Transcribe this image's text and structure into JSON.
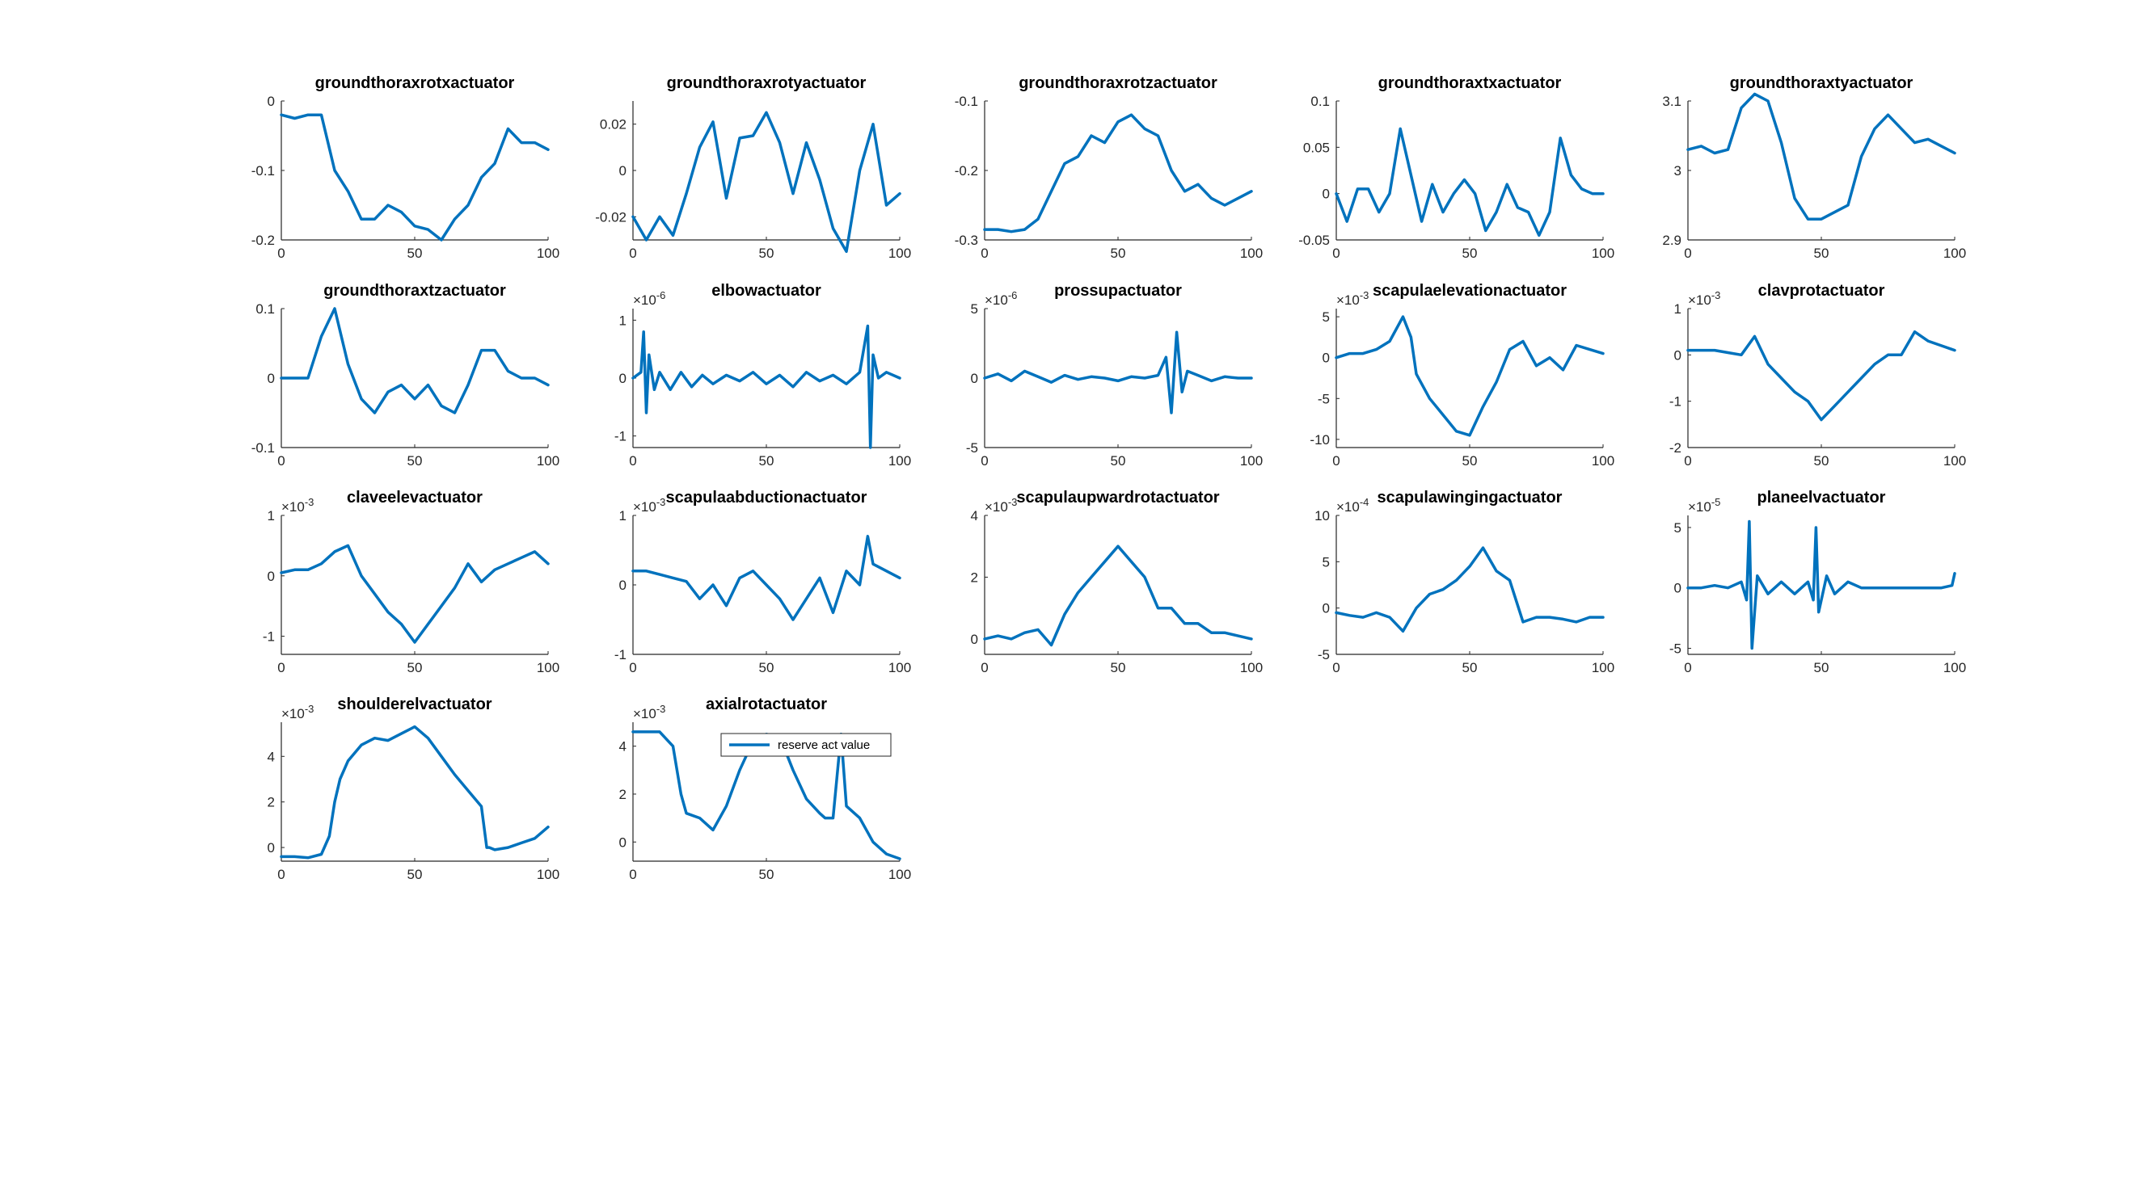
{
  "chart_data": [
    {
      "type": "line",
      "title": "groundthoraxrotxactuator",
      "xlim": [
        0,
        100
      ],
      "ylim": [
        -0.2,
        0
      ],
      "yticks": [
        "-0.2",
        "-0.1",
        "0"
      ],
      "xticks": [
        "0",
        "50",
        "100"
      ],
      "exponent": "",
      "x": [
        0,
        5,
        10,
        15,
        20,
        25,
        30,
        35,
        40,
        45,
        50,
        55,
        60,
        65,
        70,
        75,
        80,
        85,
        90,
        95,
        100
      ],
      "y": [
        -0.02,
        -0.025,
        -0.02,
        -0.02,
        -0.1,
        -0.13,
        -0.17,
        -0.17,
        -0.15,
        -0.16,
        -0.18,
        -0.185,
        -0.2,
        -0.17,
        -0.15,
        -0.11,
        -0.09,
        -0.04,
        -0.06,
        -0.06,
        -0.07
      ]
    },
    {
      "type": "line",
      "title": "groundthoraxrotyactuator",
      "xlim": [
        0,
        100
      ],
      "ylim": [
        -0.03,
        0.03
      ],
      "yticks": [
        "-0.02",
        "0",
        "0.02"
      ],
      "xticks": [
        "0",
        "50",
        "100"
      ],
      "exponent": "",
      "x": [
        0,
        5,
        10,
        15,
        20,
        25,
        30,
        35,
        40,
        45,
        50,
        55,
        60,
        65,
        70,
        75,
        80,
        85,
        90,
        95,
        100
      ],
      "y": [
        -0.02,
        -0.03,
        -0.02,
        -0.028,
        -0.01,
        0.01,
        0.021,
        -0.012,
        0.014,
        0.015,
        0.025,
        0.012,
        -0.01,
        0.012,
        -0.004,
        -0.025,
        -0.035,
        0.0,
        0.02,
        -0.015,
        -0.01
      ]
    },
    {
      "type": "line",
      "title": "groundthoraxrotzactuator",
      "xlim": [
        0,
        100
      ],
      "ylim": [
        -0.3,
        -0.1
      ],
      "yticks": [
        "-0.3",
        "-0.2",
        "-0.1"
      ],
      "xticks": [
        "0",
        "50",
        "100"
      ],
      "exponent": "",
      "x": [
        0,
        5,
        10,
        15,
        20,
        25,
        30,
        35,
        40,
        45,
        50,
        55,
        60,
        65,
        70,
        75,
        80,
        85,
        90,
        95,
        100
      ],
      "y": [
        -0.285,
        -0.285,
        -0.288,
        -0.285,
        -0.27,
        -0.23,
        -0.19,
        -0.18,
        -0.15,
        -0.16,
        -0.13,
        -0.12,
        -0.14,
        -0.15,
        -0.2,
        -0.23,
        -0.22,
        -0.24,
        -0.25,
        -0.24,
        -0.23
      ]
    },
    {
      "type": "line",
      "title": "groundthoraxtxactuator",
      "xlim": [
        0,
        100
      ],
      "ylim": [
        -0.05,
        0.1
      ],
      "yticks": [
        "-0.05",
        "0",
        "0.05",
        "0.1"
      ],
      "xticks": [
        "0",
        "50",
        "100"
      ],
      "exponent": "",
      "x": [
        0,
        4,
        8,
        12,
        16,
        20,
        24,
        28,
        32,
        36,
        40,
        44,
        48,
        52,
        56,
        60,
        64,
        68,
        72,
        76,
        80,
        84,
        88,
        92,
        96,
        100
      ],
      "y": [
        0.0,
        -0.03,
        0.005,
        0.005,
        -0.02,
        0.0,
        0.07,
        0.02,
        -0.03,
        0.01,
        -0.02,
        0.0,
        0.015,
        0.0,
        -0.04,
        -0.02,
        0.01,
        -0.015,
        -0.02,
        -0.045,
        -0.02,
        0.06,
        0.02,
        0.005,
        0.0,
        0.0
      ]
    },
    {
      "type": "line",
      "title": "groundthoraxtyactuator",
      "xlim": [
        0,
        100
      ],
      "ylim": [
        2.9,
        3.1
      ],
      "yticks": [
        "2.9",
        "3",
        "3.1"
      ],
      "xticks": [
        "0",
        "50",
        "100"
      ],
      "exponent": "",
      "x": [
        0,
        5,
        10,
        15,
        20,
        25,
        30,
        35,
        40,
        45,
        50,
        55,
        60,
        65,
        70,
        75,
        80,
        85,
        90,
        95,
        100
      ],
      "y": [
        3.03,
        3.035,
        3.025,
        3.03,
        3.09,
        3.11,
        3.1,
        3.04,
        2.96,
        2.93,
        2.93,
        2.94,
        2.95,
        3.02,
        3.06,
        3.08,
        3.06,
        3.04,
        3.045,
        3.035,
        3.025
      ]
    },
    {
      "type": "line",
      "title": "groundthoraxtzactuator",
      "xlim": [
        0,
        100
      ],
      "ylim": [
        -0.1,
        0.1
      ],
      "yticks": [
        "-0.1",
        "0",
        "0.1"
      ],
      "xticks": [
        "0",
        "50",
        "100"
      ],
      "exponent": "",
      "x": [
        0,
        5,
        10,
        15,
        20,
        25,
        30,
        35,
        40,
        45,
        50,
        55,
        60,
        65,
        70,
        75,
        80,
        85,
        90,
        95,
        100
      ],
      "y": [
        0.0,
        0.0,
        0.0,
        0.06,
        0.1,
        0.02,
        -0.03,
        -0.05,
        -0.02,
        -0.01,
        -0.03,
        -0.01,
        -0.04,
        -0.05,
        -0.01,
        0.04,
        0.04,
        0.01,
        0.0,
        0.0,
        -0.01
      ]
    },
    {
      "type": "line",
      "title": "elbowactuator",
      "xlim": [
        0,
        100
      ],
      "ylim": [
        -1.2,
        1.2
      ],
      "yticks": [
        "-1",
        "0",
        "1"
      ],
      "xticks": [
        "0",
        "50",
        "100"
      ],
      "exponent": "×10-6",
      "x": [
        0,
        3,
        4,
        5,
        6,
        8,
        10,
        14,
        18,
        22,
        26,
        30,
        35,
        40,
        45,
        50,
        55,
        60,
        65,
        70,
        75,
        80,
        85,
        88,
        89,
        90,
        92,
        95,
        100
      ],
      "y": [
        0.0,
        0.1,
        0.8,
        -0.6,
        0.4,
        -0.2,
        0.1,
        -0.2,
        0.1,
        -0.15,
        0.05,
        -0.1,
        0.05,
        -0.05,
        0.1,
        -0.1,
        0.05,
        -0.15,
        0.1,
        -0.05,
        0.05,
        -0.1,
        0.1,
        0.9,
        -1.2,
        0.4,
        0.0,
        0.1,
        0.0
      ]
    },
    {
      "type": "line",
      "title": "prossupactuator",
      "xlim": [
        0,
        100
      ],
      "ylim": [
        -5,
        5
      ],
      "yticks": [
        "-5",
        "0",
        "5"
      ],
      "xticks": [
        "0",
        "50",
        "100"
      ],
      "exponent": "×10-6",
      "x": [
        0,
        5,
        10,
        15,
        20,
        25,
        30,
        35,
        40,
        45,
        50,
        55,
        60,
        65,
        68,
        70,
        72,
        74,
        76,
        80,
        85,
        90,
        95,
        100
      ],
      "y": [
        0.0,
        0.3,
        -0.2,
        0.5,
        0.1,
        -0.3,
        0.2,
        -0.1,
        0.1,
        0.0,
        -0.2,
        0.1,
        0.0,
        0.2,
        1.5,
        -2.5,
        3.3,
        -1.0,
        0.5,
        0.2,
        -0.2,
        0.1,
        0.0,
        0.0
      ]
    },
    {
      "type": "line",
      "title": "scapulaelevationactuator",
      "xlim": [
        0,
        100
      ],
      "ylim": [
        -11,
        6
      ],
      "yticks": [
        "-10",
        "-5",
        "0",
        "5"
      ],
      "xticks": [
        "0",
        "50",
        "100"
      ],
      "exponent": "×10-3",
      "x": [
        0,
        5,
        10,
        15,
        20,
        25,
        28,
        30,
        35,
        40,
        45,
        50,
        55,
        60,
        65,
        70,
        75,
        80,
        85,
        90,
        95,
        100
      ],
      "y": [
        0.0,
        0.5,
        0.5,
        1.0,
        2.0,
        5.0,
        2.5,
        -2.0,
        -5.0,
        -7.0,
        -9.0,
        -9.5,
        -6.0,
        -3.0,
        1.0,
        2.0,
        -1.0,
        0.0,
        -1.5,
        1.5,
        1.0,
        0.5
      ]
    },
    {
      "type": "line",
      "title": "clavprotactuator",
      "xlim": [
        0,
        100
      ],
      "ylim": [
        -2,
        1
      ],
      "yticks": [
        "-2",
        "-1",
        "0",
        "1"
      ],
      "xticks": [
        "0",
        "50",
        "100"
      ],
      "exponent": "×10-3",
      "x": [
        0,
        5,
        10,
        15,
        20,
        25,
        30,
        35,
        40,
        45,
        50,
        55,
        60,
        65,
        70,
        75,
        80,
        85,
        90,
        95,
        100
      ],
      "y": [
        0.1,
        0.1,
        0.1,
        0.05,
        0.0,
        0.4,
        -0.2,
        -0.5,
        -0.8,
        -1.0,
        -1.4,
        -1.1,
        -0.8,
        -0.5,
        -0.2,
        0.0,
        0.0,
        0.5,
        0.3,
        0.2,
        0.1
      ]
    },
    {
      "type": "line",
      "title": "claveelevactuator",
      "xlim": [
        0,
        100
      ],
      "ylim": [
        -1.3,
        1
      ],
      "yticks": [
        "-1",
        "0",
        "1"
      ],
      "xticks": [
        "0",
        "50",
        "100"
      ],
      "exponent": "×10-3",
      "x": [
        0,
        5,
        10,
        15,
        20,
        25,
        30,
        35,
        40,
        45,
        50,
        55,
        60,
        65,
        70,
        75,
        80,
        85,
        90,
        95,
        100
      ],
      "y": [
        0.05,
        0.1,
        0.1,
        0.2,
        0.4,
        0.5,
        0.0,
        -0.3,
        -0.6,
        -0.8,
        -1.1,
        -0.8,
        -0.5,
        -0.2,
        0.2,
        -0.1,
        0.1,
        0.2,
        0.3,
        0.4,
        0.2
      ]
    },
    {
      "type": "line",
      "title": "scapulaabductionactuator",
      "xlim": [
        0,
        100
      ],
      "ylim": [
        -1,
        1
      ],
      "yticks": [
        "-1",
        "0",
        "1"
      ],
      "xticks": [
        "0",
        "50",
        "100"
      ],
      "exponent": "×10-3",
      "x": [
        0,
        5,
        10,
        15,
        20,
        25,
        30,
        35,
        40,
        45,
        50,
        55,
        60,
        65,
        70,
        75,
        80,
        85,
        88,
        90,
        95,
        100
      ],
      "y": [
        0.2,
        0.2,
        0.15,
        0.1,
        0.05,
        -0.2,
        0.0,
        -0.3,
        0.1,
        0.2,
        0.0,
        -0.2,
        -0.5,
        -0.2,
        0.1,
        -0.4,
        0.2,
        0.0,
        0.7,
        0.3,
        0.2,
        0.1
      ]
    },
    {
      "type": "line",
      "title": "scapulaupwardrotactuator",
      "xlim": [
        0,
        100
      ],
      "ylim": [
        -0.5,
        4
      ],
      "yticks": [
        "0",
        "2",
        "4"
      ],
      "xticks": [
        "0",
        "50",
        "100"
      ],
      "exponent": "×10-3",
      "x": [
        0,
        5,
        10,
        15,
        20,
        25,
        30,
        35,
        40,
        45,
        50,
        55,
        60,
        65,
        70,
        75,
        80,
        85,
        90,
        95,
        100
      ],
      "y": [
        0.0,
        0.1,
        0.0,
        0.2,
        0.3,
        -0.2,
        0.8,
        1.5,
        2.0,
        2.5,
        3.0,
        2.5,
        2.0,
        1.0,
        1.0,
        0.5,
        0.5,
        0.2,
        0.2,
        0.1,
        0.0
      ]
    },
    {
      "type": "line",
      "title": "scapulawingingactuator",
      "xlim": [
        0,
        100
      ],
      "ylim": [
        -5,
        10
      ],
      "yticks": [
        "-5",
        "0",
        "5",
        "10"
      ],
      "xticks": [
        "0",
        "50",
        "100"
      ],
      "exponent": "×10-4",
      "x": [
        0,
        5,
        10,
        15,
        20,
        25,
        30,
        35,
        40,
        45,
        50,
        55,
        60,
        65,
        70,
        75,
        80,
        85,
        90,
        95,
        100
      ],
      "y": [
        -0.5,
        -0.8,
        -1.0,
        -0.5,
        -1.0,
        -2.5,
        0.0,
        1.5,
        2.0,
        3.0,
        4.5,
        6.5,
        4.0,
        3.0,
        -1.5,
        -1.0,
        -1.0,
        -1.2,
        -1.5,
        -1.0,
        -1.0
      ]
    },
    {
      "type": "line",
      "title": "planeelvactuator",
      "xlim": [
        0,
        100
      ],
      "ylim": [
        -5.5,
        6
      ],
      "yticks": [
        "-5",
        "0",
        "5"
      ],
      "xticks": [
        "0",
        "50",
        "100"
      ],
      "exponent": "×10-5",
      "x": [
        0,
        5,
        10,
        15,
        20,
        22,
        23,
        24,
        26,
        30,
        35,
        40,
        45,
        47,
        48,
        49,
        52,
        55,
        60,
        65,
        70,
        75,
        80,
        85,
        90,
        95,
        99,
        100
      ],
      "y": [
        0.0,
        0.0,
        0.2,
        0.0,
        0.5,
        -1.0,
        5.5,
        -5.0,
        1.0,
        -0.5,
        0.5,
        -0.5,
        0.5,
        -1.0,
        5.0,
        -2.0,
        1.0,
        -0.5,
        0.5,
        0.0,
        0.0,
        0.0,
        0.0,
        0.0,
        0.0,
        0.0,
        0.2,
        1.2
      ]
    },
    {
      "type": "line",
      "title": "shoulderelvactuator",
      "xlim": [
        0,
        100
      ],
      "ylim": [
        -0.6,
        5.5
      ],
      "yticks": [
        "0",
        "2",
        "4"
      ],
      "xticks": [
        "0",
        "50",
        "100"
      ],
      "exponent": "×10-3",
      "x": [
        0,
        5,
        10,
        15,
        18,
        20,
        22,
        25,
        30,
        35,
        40,
        45,
        50,
        55,
        60,
        65,
        70,
        75,
        77,
        78,
        80,
        85,
        90,
        95,
        100
      ],
      "y": [
        -0.4,
        -0.4,
        -0.45,
        -0.3,
        0.5,
        2.0,
        3.0,
        3.8,
        4.5,
        4.8,
        4.7,
        5.0,
        5.3,
        4.8,
        4.0,
        3.2,
        2.5,
        1.8,
        0.0,
        0.0,
        -0.1,
        0.0,
        0.2,
        0.4,
        0.9
      ]
    },
    {
      "type": "line",
      "title": "axialrotactuator",
      "xlim": [
        0,
        100
      ],
      "ylim": [
        -0.8,
        5
      ],
      "yticks": [
        "0",
        "2",
        "4"
      ],
      "xticks": [
        "0",
        "50",
        "100"
      ],
      "exponent": "×10-3",
      "x": [
        0,
        5,
        10,
        15,
        18,
        20,
        25,
        30,
        35,
        40,
        45,
        50,
        55,
        60,
        65,
        70,
        72,
        75,
        78,
        80,
        85,
        90,
        95,
        100
      ],
      "y": [
        4.6,
        4.6,
        4.6,
        4.0,
        2.0,
        1.2,
        1.0,
        0.5,
        1.5,
        3.0,
        4.2,
        4.5,
        4.4,
        3.0,
        1.8,
        1.2,
        1.0,
        1.0,
        4.5,
        1.5,
        1.0,
        0.0,
        -0.5,
        -0.7
      ]
    }
  ],
  "legend": {
    "label": "reserve act value",
    "color": "#0072BD"
  }
}
